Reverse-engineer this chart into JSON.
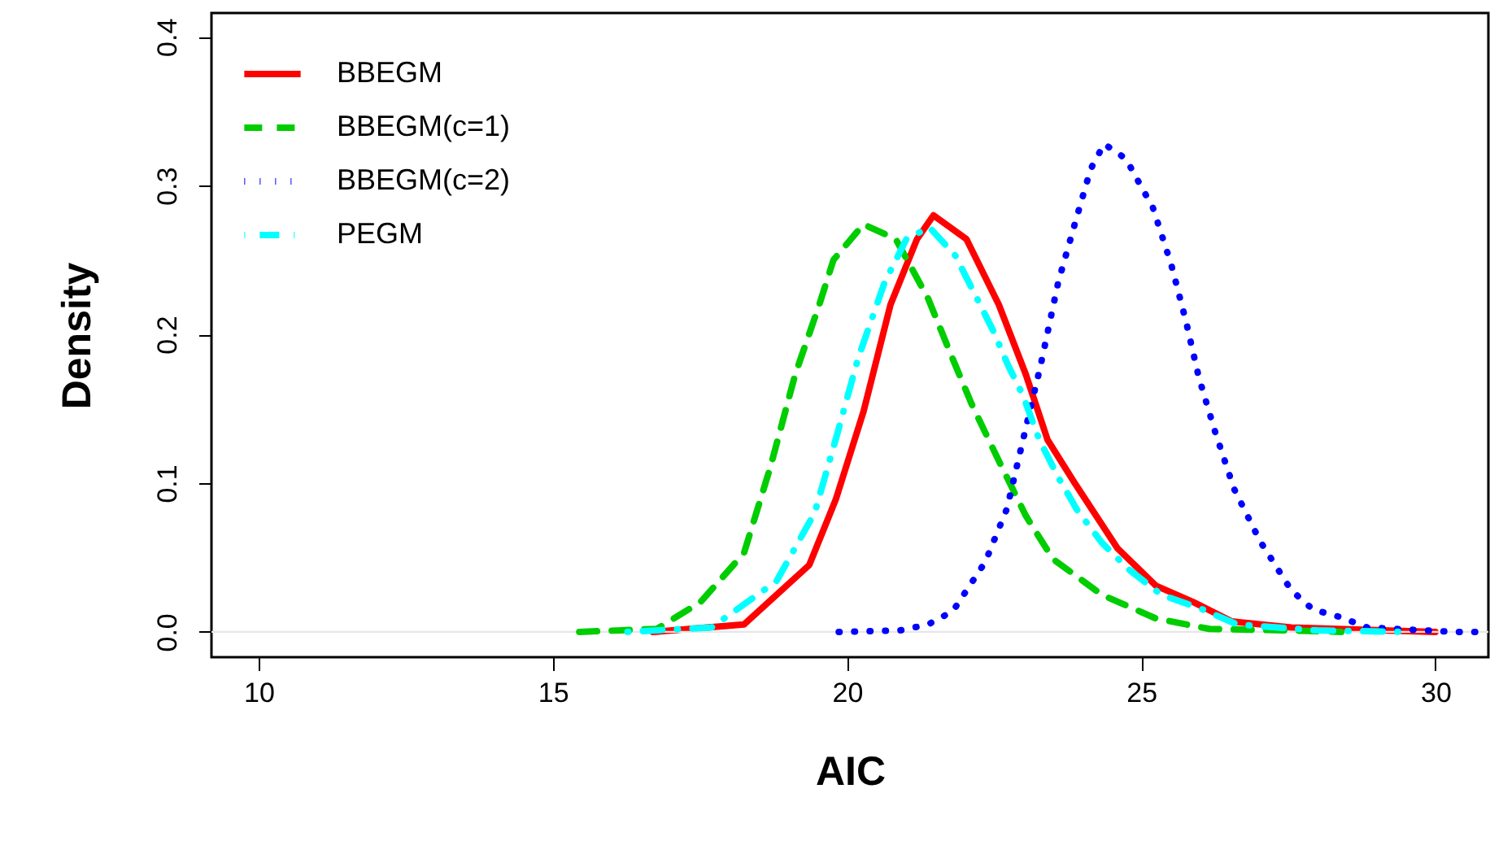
{
  "chart_data": {
    "type": "line",
    "xlabel": "AIC",
    "ylabel": "Density",
    "xlim": [
      9.2,
      30.9
    ],
    "ylim": [
      -0.017,
      0.416
    ],
    "xticks": [
      10,
      15,
      20,
      25,
      30
    ],
    "yticks": [
      {
        "value": 0,
        "label": "0.0"
      },
      {
        "value": 0.1,
        "label": "0.1"
      },
      {
        "value": 0.2,
        "label": "0.2"
      },
      {
        "value": 0.3,
        "label": "0.3"
      },
      {
        "value": 0.4,
        "label": "0.4"
      }
    ],
    "grid": false,
    "legend": "top left",
    "ref_lines": [
      {
        "axis": "y",
        "value": 0,
        "color": "#e6e6e6"
      }
    ],
    "series": [
      {
        "name": "BBEGM",
        "color": "#ff0000",
        "line_style": "solid",
        "x": [
          16.7,
          18.25,
          19.36,
          19.81,
          20.28,
          20.74,
          21.19,
          21.47,
          22.03,
          22.58,
          23.04,
          23.41,
          23.87,
          24.6,
          25.25,
          25.89,
          26.54,
          27.55,
          30.0
        ],
        "values": [
          0,
          0.005,
          0.045,
          0.089,
          0.148,
          0.22,
          0.264,
          0.28,
          0.264,
          0.22,
          0.173,
          0.129,
          0.1,
          0.056,
          0.031,
          0.02,
          0.007,
          0.003,
          0
        ]
      },
      {
        "name": "BBEGM(c=1)",
        "color": "#00cd00",
        "line_style": "dashed",
        "x": [
          15.45,
          16.77,
          17.51,
          18.25,
          18.7,
          19.12,
          19.53,
          19.77,
          20.28,
          20.83,
          21.38,
          21.75,
          22.12,
          22.58,
          23.04,
          23.5,
          24.33,
          25.25,
          26.16,
          27.5,
          28.4
        ],
        "values": [
          0,
          0.002,
          0.02,
          0.053,
          0.111,
          0.173,
          0.22,
          0.25,
          0.274,
          0.264,
          0.224,
          0.188,
          0.153,
          0.115,
          0.078,
          0.049,
          0.025,
          0.009,
          0.002,
          0.001,
          0
        ]
      },
      {
        "name": "BBEGM(c=2)",
        "color": "#0000ff",
        "line_style": "dotted",
        "x": [
          19.86,
          20.9,
          21.38,
          21.8,
          22.35,
          22.72,
          22.95,
          23.29,
          23.59,
          23.87,
          24.14,
          24.37,
          24.74,
          25.2,
          25.51,
          25.76,
          25.98,
          26.26,
          26.58,
          27.02,
          27.55,
          27.92,
          28.38,
          28.84,
          30.3,
          30.9
        ],
        "values": [
          0,
          0.001,
          0.005,
          0.014,
          0.047,
          0.083,
          0.122,
          0.179,
          0.235,
          0.274,
          0.311,
          0.328,
          0.318,
          0.285,
          0.247,
          0.209,
          0.171,
          0.134,
          0.096,
          0.061,
          0.028,
          0.015,
          0.01,
          0.003,
          0,
          0
        ]
      },
      {
        "name": "PEGM",
        "color": "#00ffff",
        "line_style": "dashdot",
        "x": [
          16.27,
          17.7,
          18.8,
          19.45,
          19.82,
          20.19,
          20.64,
          21.01,
          21.4,
          21.84,
          22.16,
          22.49,
          22.74,
          22.99,
          23.27,
          23.59,
          23.91,
          24.33,
          24.79,
          25.34,
          25.99,
          26.63,
          28.0,
          29.48
        ],
        "values": [
          0,
          0.003,
          0.034,
          0.08,
          0.131,
          0.184,
          0.235,
          0.264,
          0.272,
          0.253,
          0.228,
          0.202,
          0.179,
          0.159,
          0.129,
          0.104,
          0.082,
          0.06,
          0.042,
          0.025,
          0.016,
          0.005,
          0.001,
          0
        ]
      }
    ]
  }
}
